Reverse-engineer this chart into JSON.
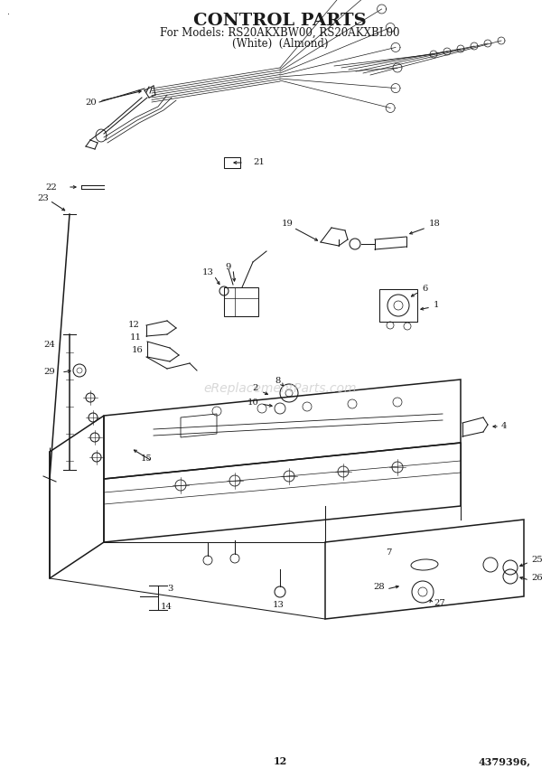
{
  "title_line1": "CONTROL PARTS",
  "title_line2": "For Models: RS20AKXBW00, RS20AKXBL00",
  "title_line3": "(White)  (Almond)",
  "page_number": "12",
  "part_number": "4379396,",
  "bg": "#ffffff",
  "fg": "#1a1a1a",
  "wm_color": "#c8c8c8",
  "wm_text": "eReplacementParts.com",
  "lw": 0.75,
  "lw2": 1.1,
  "fs_title": 14,
  "fs_sub": 8.5,
  "fs_label": 7.2,
  "fs_foot": 8
}
